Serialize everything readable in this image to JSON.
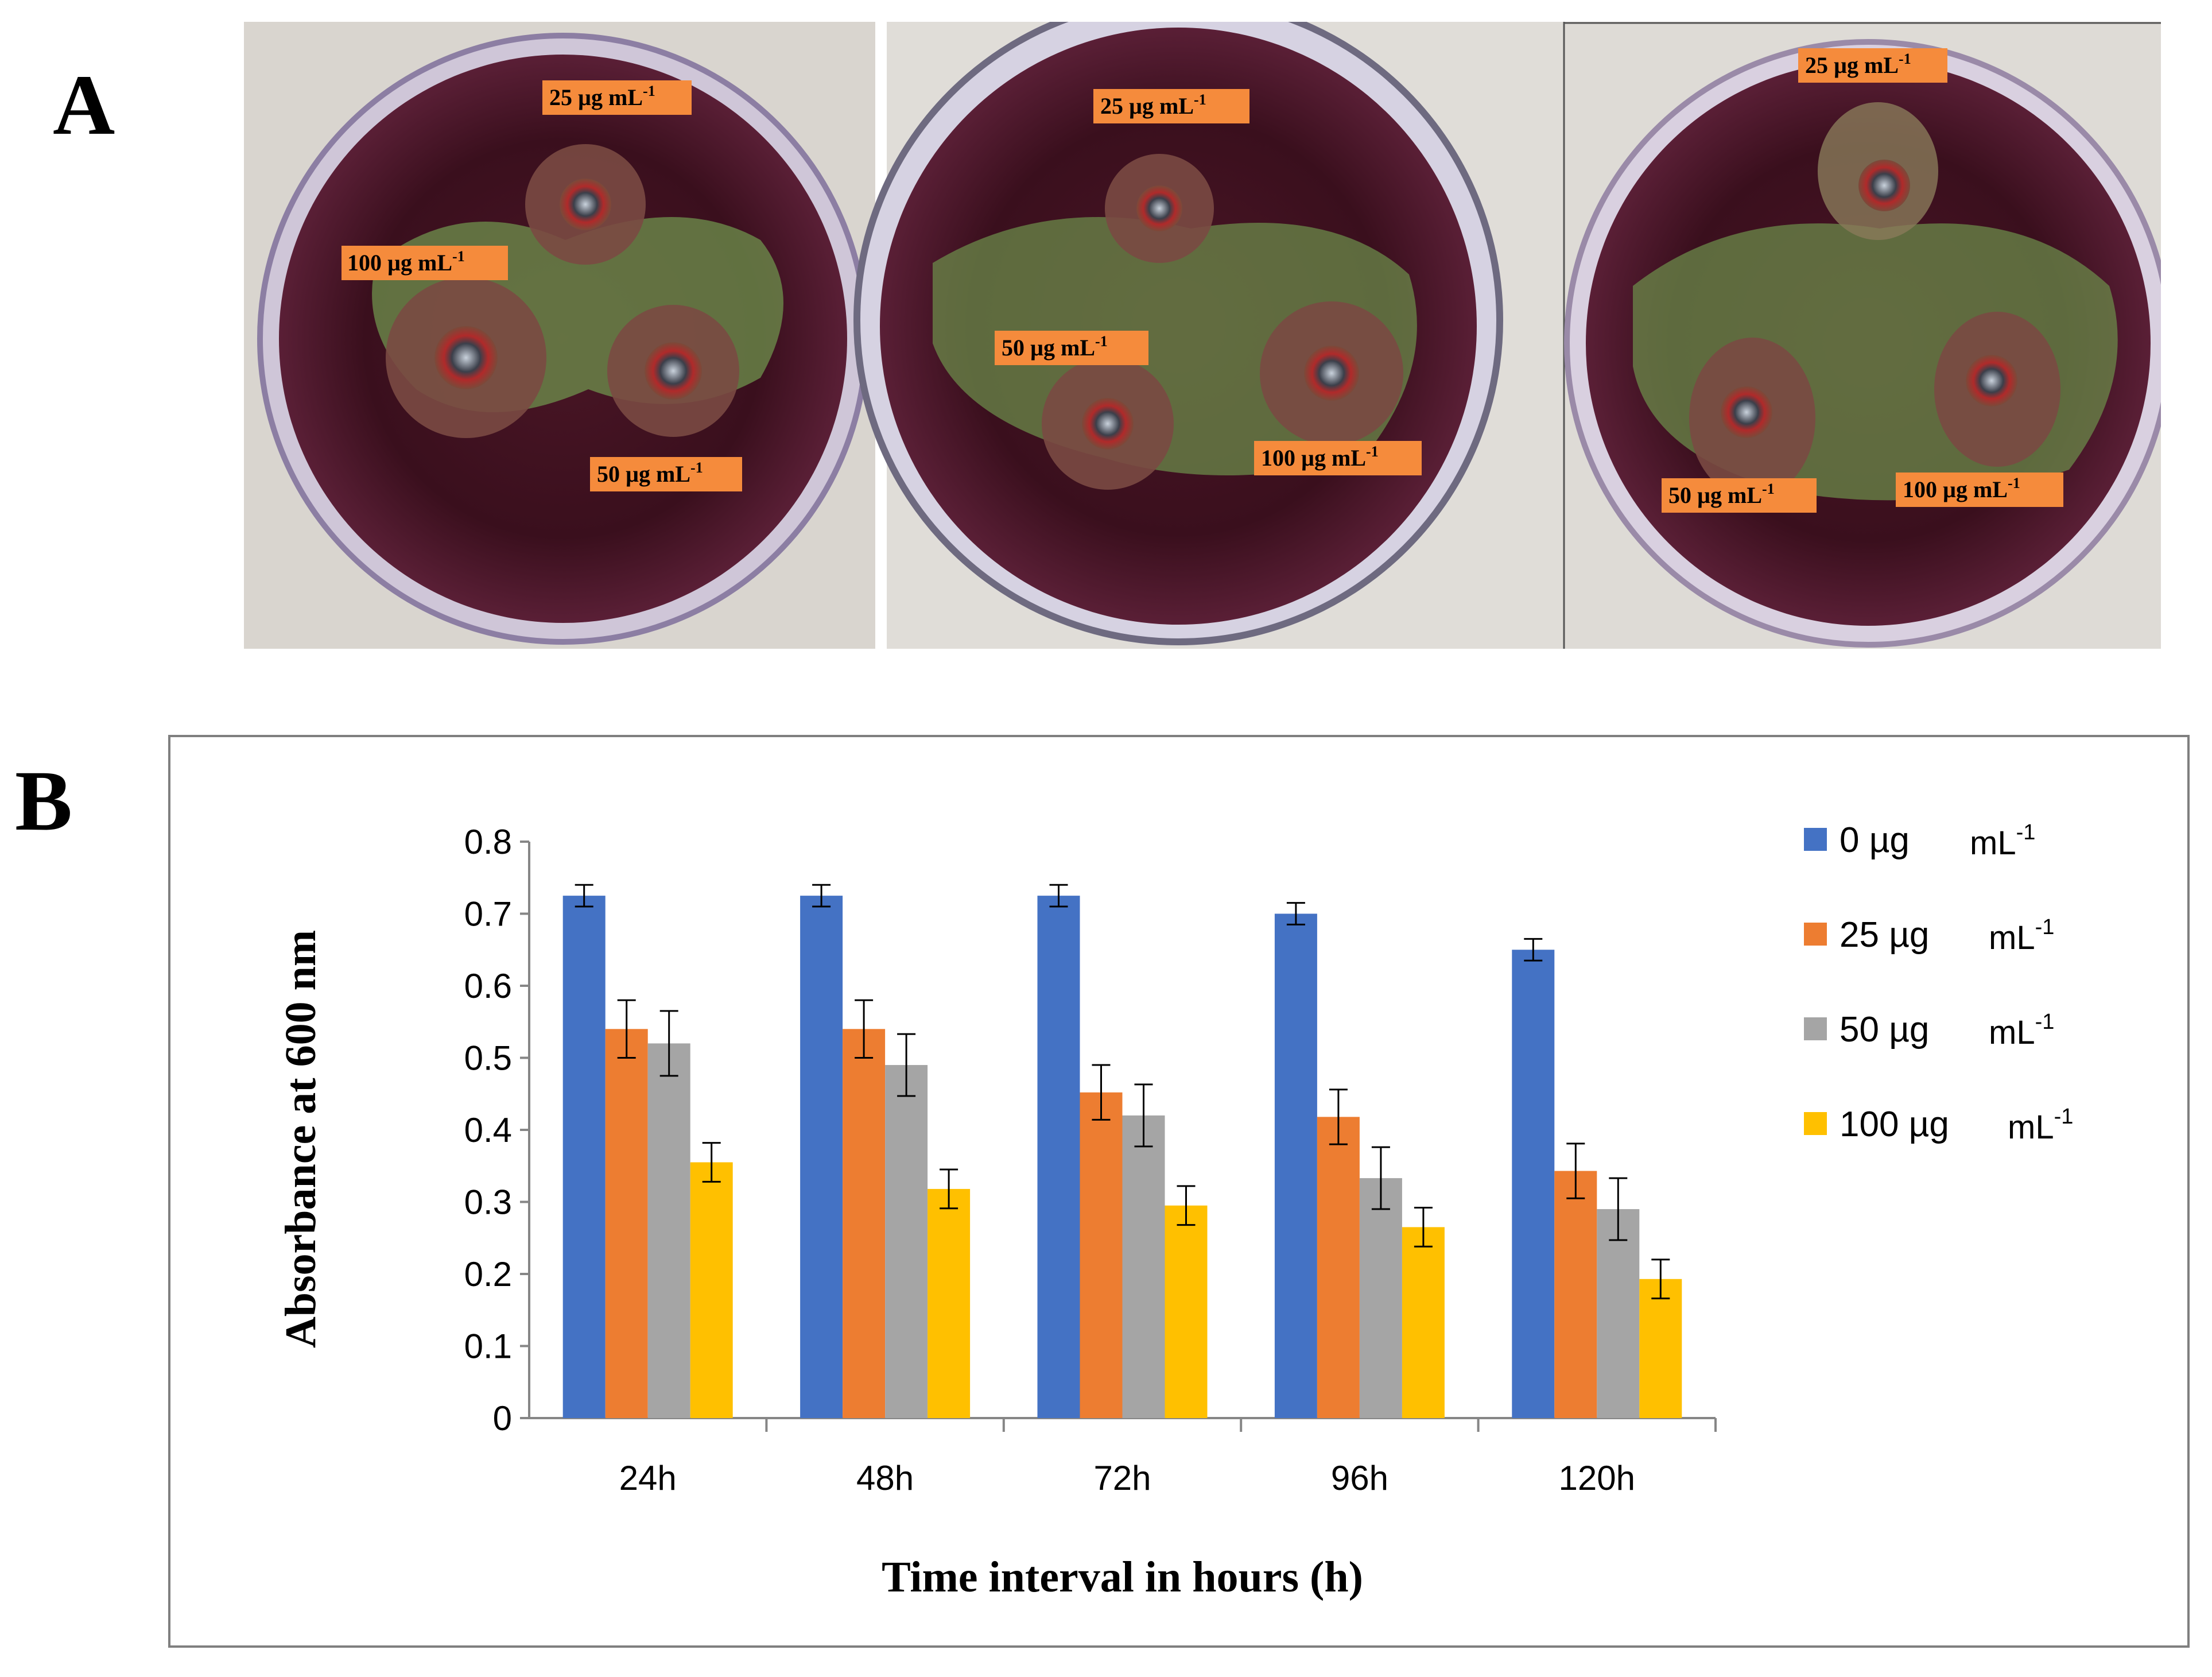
{
  "panel_a": {
    "letter": "A",
    "plates": [
      {
        "labels": [
          {
            "text": "25 µg mL",
            "sup": "-1"
          },
          {
            "text": "100 µg mL",
            "sup": "-1"
          },
          {
            "text": "50 µg mL",
            "sup": "-1"
          }
        ]
      },
      {
        "labels": [
          {
            "text": "25 µg mL",
            "sup": "-1"
          },
          {
            "text": "50 µg mL",
            "sup": "-1"
          },
          {
            "text": "100 µg mL",
            "sup": "-1"
          }
        ]
      },
      {
        "labels": [
          {
            "text": "25 µg mL",
            "sup": "-1"
          },
          {
            "text": "50 µg mL",
            "sup": "-1"
          },
          {
            "text": "100 µg mL",
            "sup": "-1"
          }
        ]
      }
    ]
  },
  "panel_b": {
    "letter": "B"
  },
  "colors": {
    "0": "#4472c4",
    "25": "#ed7d31",
    "50": "#a5a5a5",
    "100": "#ffc000"
  },
  "chart_data": {
    "type": "bar",
    "title": "",
    "xlabel": "Time interval in hours (h)",
    "ylabel": "Absorbance at 600 nm",
    "ylim": [
      0,
      0.8
    ],
    "yticks": [
      0,
      0.1,
      0.2,
      0.3,
      0.4,
      0.5,
      0.6,
      0.7,
      0.8
    ],
    "categories": [
      "24h",
      "48h",
      "72h",
      "96h",
      "120h"
    ],
    "legend_position": "right",
    "grid": false,
    "series": [
      {
        "name": "0 µg",
        "unit": "mL",
        "unit_sup": "-1",
        "color": "#4472c4",
        "values": [
          0.725,
          0.725,
          0.725,
          0.7,
          0.65
        ],
        "errors": [
          0.015,
          0.015,
          0.015,
          0.015,
          0.015
        ]
      },
      {
        "name": "25 µg",
        "unit": "mL",
        "unit_sup": "-1",
        "color": "#ed7d31",
        "values": [
          0.54,
          0.54,
          0.452,
          0.418,
          0.343
        ],
        "errors": [
          0.04,
          0.04,
          0.038,
          0.038,
          0.038
        ]
      },
      {
        "name": "50 µg",
        "unit": "mL",
        "unit_sup": "-1",
        "color": "#a5a5a5",
        "values": [
          0.52,
          0.49,
          0.42,
          0.333,
          0.29
        ],
        "errors": [
          0.045,
          0.043,
          0.043,
          0.043,
          0.043
        ]
      },
      {
        "name": "100 µg",
        "unit": "mL",
        "unit_sup": "-1",
        "color": "#ffc000",
        "values": [
          0.355,
          0.318,
          0.295,
          0.265,
          0.193
        ],
        "errors": [
          0.027,
          0.027,
          0.027,
          0.027,
          0.027
        ]
      }
    ]
  }
}
